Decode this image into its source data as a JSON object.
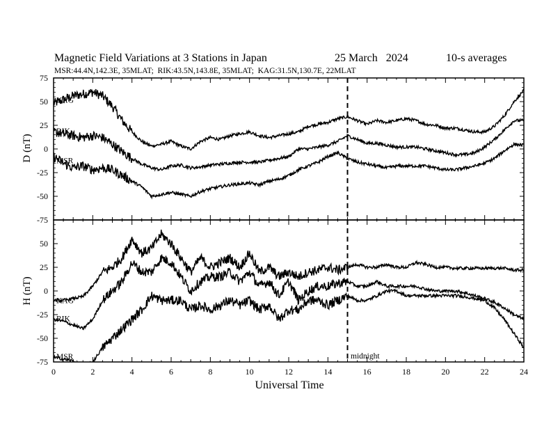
{
  "chart_data": [
    {
      "type": "line",
      "panel": "D",
      "title": "Magnetic Field Variations at 3 Stations in Japan",
      "date": "25 March   2024",
      "averaging": "10-s averages",
      "stations_info": "MSR:44.4N,142.3E, 35MLAT;  RIK:43.5N,143.8E, 35MLAT;  KAG:31.5N,130.7E, 22MLAT",
      "ylabel": "D (nT)",
      "ylim": [
        -75,
        75
      ],
      "yticks": [
        75,
        50,
        25,
        0,
        -25,
        -50,
        -75
      ],
      "xlim": [
        0,
        24
      ],
      "x": [
        0,
        0.5,
        1,
        1.5,
        2,
        2.5,
        3,
        3.5,
        4,
        4.5,
        5,
        5.5,
        6,
        6.5,
        7,
        7.5,
        8,
        8.5,
        9,
        9.5,
        10,
        10.5,
        11,
        11.5,
        12,
        12.5,
        13,
        13.5,
        14,
        14.5,
        15,
        15.5,
        16,
        16.5,
        17,
        17.5,
        18,
        18.5,
        19,
        19.5,
        20,
        20.5,
        21,
        21.5,
        22,
        22.5,
        23,
        23.5,
        24
      ],
      "series": [
        {
          "name": "KAG",
          "values": [
            48,
            52,
            56,
            58,
            60,
            56,
            45,
            30,
            18,
            8,
            3,
            5,
            8,
            3,
            0,
            8,
            12,
            10,
            14,
            16,
            18,
            14,
            12,
            14,
            16,
            18,
            24,
            26,
            28,
            32,
            34,
            30,
            26,
            30,
            28,
            30,
            32,
            30,
            26,
            25,
            22,
            22,
            20,
            18,
            18,
            24,
            35,
            50,
            62
          ]
        },
        {
          "name": "RIK",
          "values": [
            18,
            16,
            14,
            12,
            14,
            12,
            5,
            -3,
            -10,
            -16,
            -20,
            -22,
            -18,
            -17,
            -20,
            -19,
            -17,
            -16,
            -15,
            -14,
            -14,
            -14,
            -12,
            -10,
            -8,
            0,
            0,
            2,
            4,
            8,
            14,
            10,
            6,
            6,
            4,
            2,
            2,
            2,
            0,
            -2,
            -4,
            -6,
            -6,
            -4,
            2,
            10,
            20,
            30,
            30
          ]
        },
        {
          "name": "MSR",
          "values": [
            -8,
            -15,
            -20,
            -18,
            -22,
            -20,
            -22,
            -28,
            -34,
            -40,
            -50,
            -48,
            -46,
            -48,
            -50,
            -45,
            -42,
            -40,
            -38,
            -37,
            -36,
            -38,
            -34,
            -32,
            -28,
            -22,
            -18,
            -14,
            -8,
            -4,
            -10,
            -14,
            -16,
            -18,
            -20,
            -18,
            -18,
            -18,
            -18,
            -20,
            -22,
            -22,
            -20,
            -18,
            -15,
            -10,
            -2,
            5,
            4
          ]
        }
      ]
    },
    {
      "type": "line",
      "panel": "H",
      "ylabel": "H (nT)",
      "xlabel": "Universal Time",
      "ylim": [
        -75,
        75
      ],
      "yticks": [
        50,
        25,
        0,
        -25,
        -50,
        -75
      ],
      "xlim": [
        0,
        24
      ],
      "xticks": [
        0,
        2,
        4,
        6,
        8,
        10,
        12,
        14,
        16,
        18,
        20,
        22,
        24
      ],
      "annotation": "midnight",
      "marker_x": 15,
      "x": [
        0,
        0.5,
        1,
        1.5,
        2,
        2.5,
        3,
        3.5,
        4,
        4.5,
        5,
        5.5,
        6,
        6.5,
        7,
        7.5,
        8,
        8.5,
        9,
        9.5,
        10,
        10.5,
        11,
        11.5,
        12,
        12.5,
        13,
        13.5,
        14,
        14.5,
        15,
        15.5,
        16,
        16.5,
        17,
        17.5,
        18,
        18.5,
        19,
        19.5,
        20,
        20.5,
        21,
        21.5,
        22,
        22.5,
        23,
        23.5,
        24
      ],
      "series": [
        {
          "name": "KAG",
          "values": [
            -10,
            -10,
            -8,
            -6,
            5,
            20,
            25,
            35,
            55,
            40,
            45,
            60,
            50,
            35,
            20,
            35,
            25,
            30,
            35,
            25,
            40,
            20,
            25,
            15,
            20,
            15,
            20,
            22,
            25,
            22,
            25,
            28,
            25,
            25,
            28,
            25,
            25,
            30,
            28,
            25,
            25,
            24,
            24,
            24,
            24,
            24,
            24,
            22,
            22
          ]
        },
        {
          "name": "RIK",
          "values": [
            -30,
            -32,
            -36,
            -40,
            -30,
            -10,
            0,
            10,
            30,
            20,
            20,
            35,
            30,
            15,
            0,
            10,
            15,
            15,
            20,
            10,
            20,
            5,
            10,
            -5,
            10,
            -10,
            0,
            5,
            5,
            8,
            10,
            5,
            5,
            10,
            5,
            5,
            5,
            5,
            2,
            0,
            0,
            0,
            -2,
            -5,
            -8,
            -12,
            -18,
            -25,
            -30
          ]
        },
        {
          "name": "MSR",
          "values": [
            -70,
            -72,
            -74,
            -80,
            -75,
            -60,
            -50,
            -40,
            -30,
            -20,
            -5,
            -10,
            -10,
            -10,
            -20,
            -15,
            -20,
            -15,
            -10,
            -15,
            -10,
            -20,
            -15,
            -30,
            -20,
            -20,
            -10,
            -10,
            -15,
            -10,
            -5,
            -10,
            -10,
            -5,
            0,
            0,
            -5,
            -5,
            -5,
            -5,
            -5,
            -5,
            -6,
            -8,
            -10,
            -18,
            -30,
            -45,
            -60
          ]
        }
      ]
    }
  ]
}
